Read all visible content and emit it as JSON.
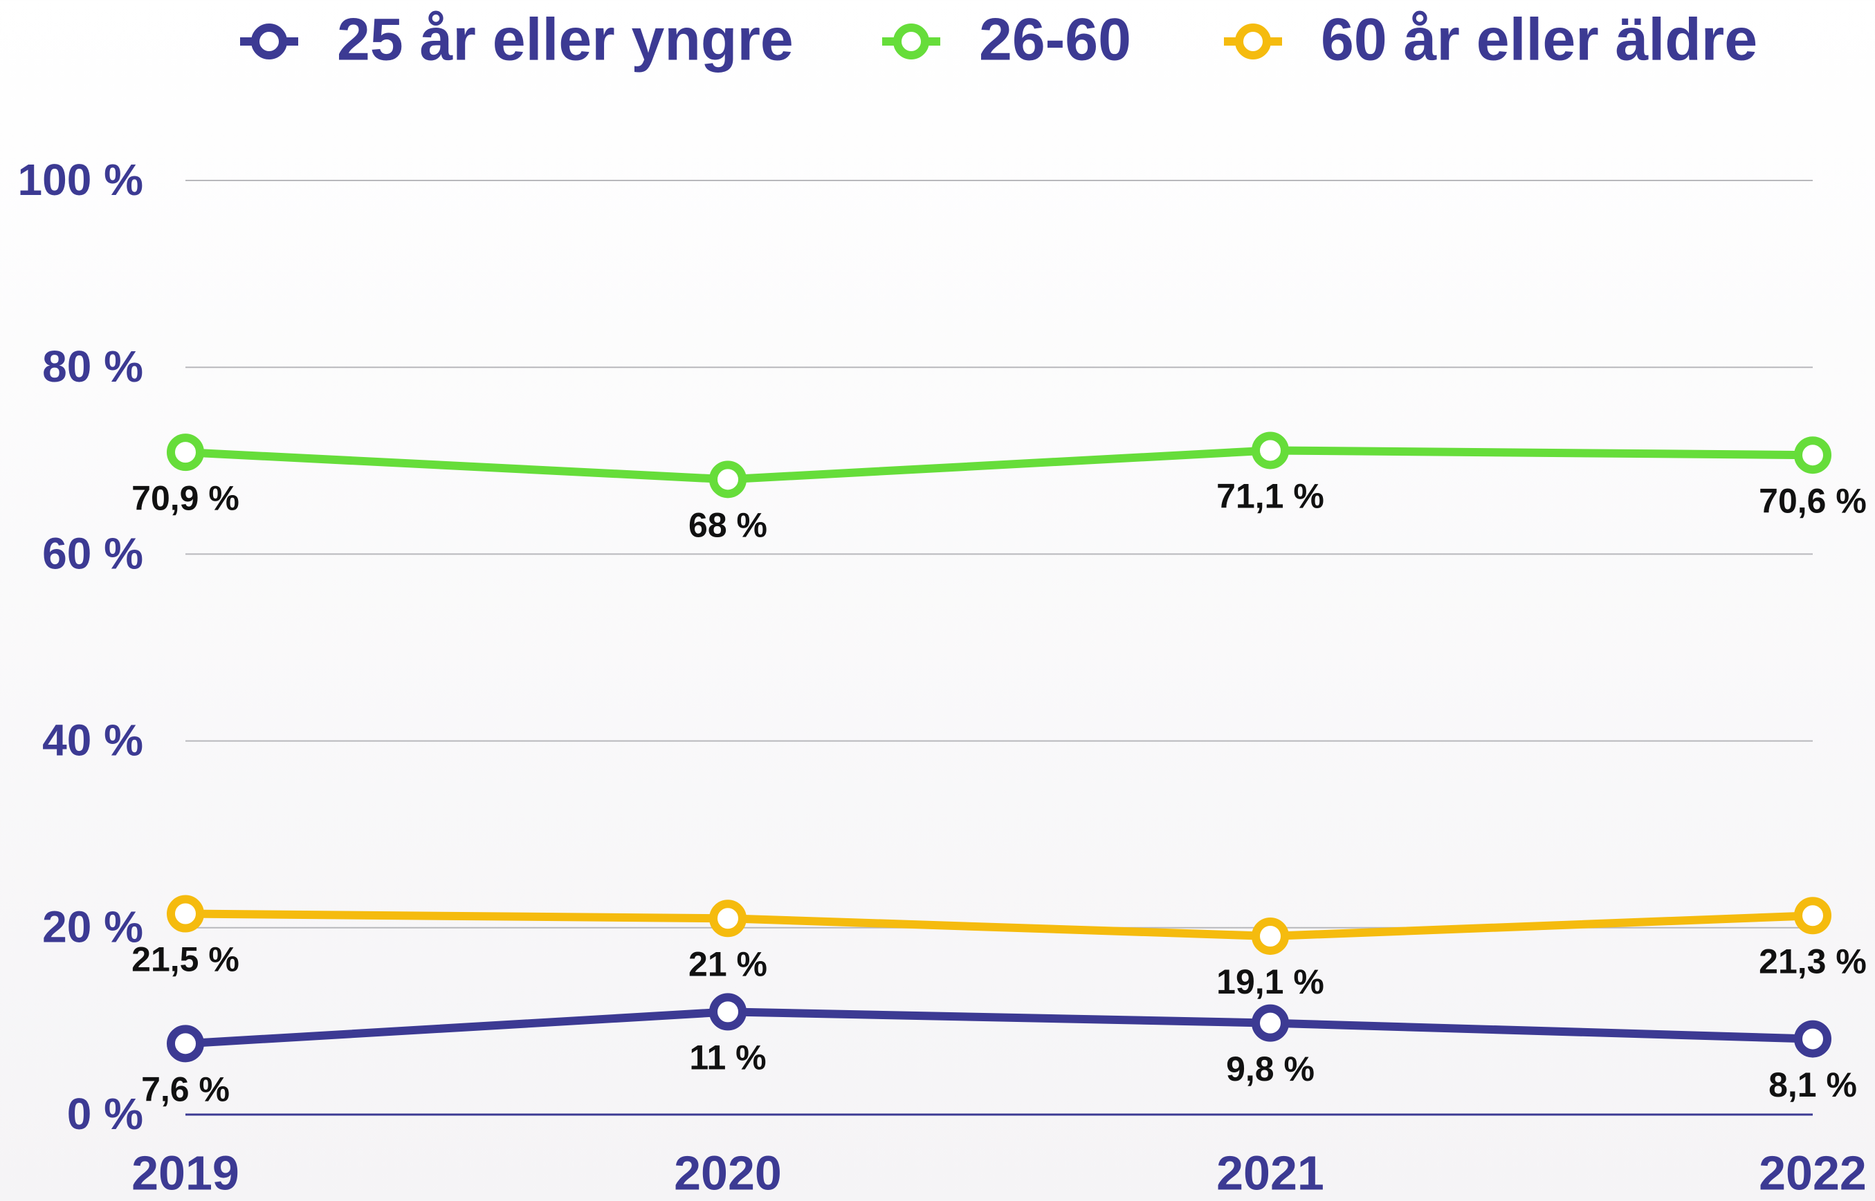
{
  "chart_data": {
    "type": "line",
    "x": [
      "2019",
      "2020",
      "2021",
      "2022"
    ],
    "series": [
      {
        "name": "25 år eller yngre",
        "color": "#3c3a93",
        "values": [
          7.6,
          11,
          9.8,
          8.1
        ],
        "value_labels": [
          "7,6 %",
          "11 %",
          "9,8 %",
          "8,1 %"
        ]
      },
      {
        "name": "26-60",
        "color": "#66dd3a",
        "values": [
          70.9,
          68,
          71.1,
          70.6
        ],
        "value_labels": [
          "70,9 %",
          "68 %",
          "71,1 %",
          "70,6 %"
        ]
      },
      {
        "name": "60 år eller äldre",
        "color": "#f5bb0e",
        "values": [
          21.5,
          21,
          19.1,
          21.3
        ],
        "value_labels": [
          "21,5 %",
          "21 %",
          "19,1 %",
          "21,3 %"
        ]
      }
    ],
    "ylim": [
      0,
      100
    ],
    "yticks": [
      {
        "value": 0,
        "label": "0 %"
      },
      {
        "value": 20,
        "label": "20 %"
      },
      {
        "value": 40,
        "label": "40 %"
      },
      {
        "value": 60,
        "label": "60 %"
      },
      {
        "value": 80,
        "label": "80 %"
      },
      {
        "value": 100,
        "label": "100 %"
      }
    ],
    "grid": true,
    "legend": "top"
  }
}
